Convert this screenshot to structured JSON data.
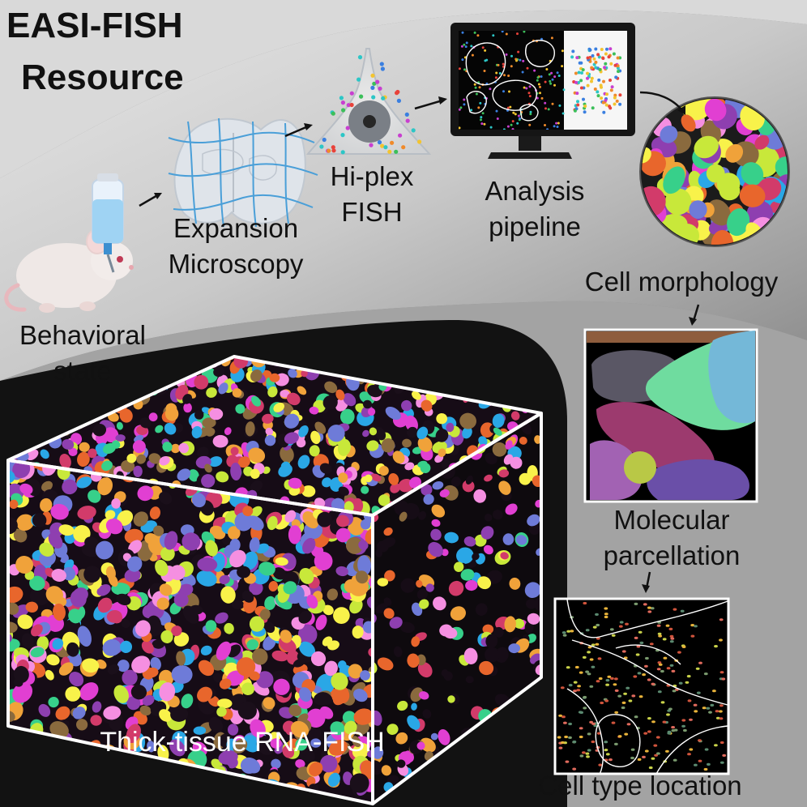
{
  "title": {
    "line1": "EASI-FISH",
    "line2": "Resource"
  },
  "steps": {
    "behavioral_state": {
      "line1": "Behavioral",
      "line2": "state"
    },
    "expansion": {
      "line1": "Expansion",
      "line2": "Microscopy"
    },
    "hiplex": {
      "line1": "Hi-plex",
      "line2": "FISH"
    },
    "analysis": {
      "line1": "Analysis",
      "line2": "pipeline"
    },
    "morphology": {
      "line1": "Cell morphology"
    },
    "parcellation": {
      "line1": "Molecular",
      "line2": "parcellation"
    },
    "location": {
      "line1": "Cell type location"
    }
  },
  "cube": {
    "label": "Thick-tissue RNA-FISH"
  },
  "colors": {
    "background_light": "#dcdcdc",
    "background_mid": "#9a9a9a",
    "background_dark": "#111111",
    "cell_palette": [
      "#e13fd2",
      "#c8e83a",
      "#37d08a",
      "#d23b6a",
      "#8e3fb0",
      "#f0a23a",
      "#6e7bd8",
      "#f8f24a",
      "#2aa7e6",
      "#e8662c",
      "#8a6a3e",
      "#f58fe1"
    ],
    "parcel_palette": [
      "#5a5765",
      "#6fdc9f",
      "#74b8d8",
      "#9c3a6e",
      "#a262b3",
      "#b9c846",
      "#6a4fa8",
      "#8e5d3d"
    ]
  }
}
